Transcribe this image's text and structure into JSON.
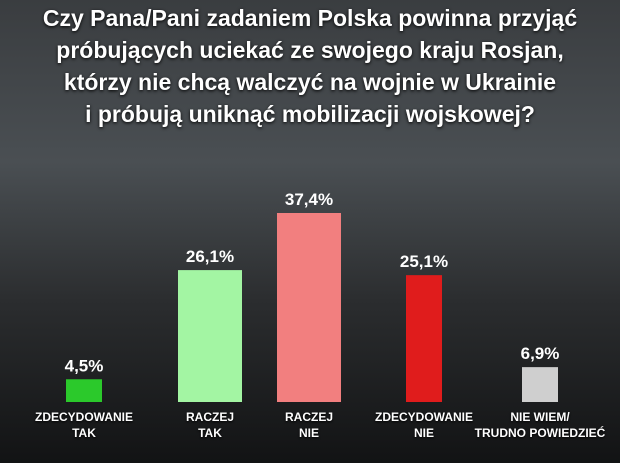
{
  "chart_data": {
    "type": "bar",
    "title": "Czy Pana/Pani zadaniem Polska powinna przyjąć\npróbujących uciekać ze swojego kraju Rosjan,\nktórzy nie chcą walczyć na wojnie w Ukrainie\ni próbują uniknąć mobilizacji wojskowej?",
    "categories": [
      "ZDECYDOWANIE\nTAK",
      "RACZEJ\nTAK",
      "RACZEJ\nNIE",
      "ZDECYDOWANIE\nNIE",
      "NIE WIEM/\nTRUDNO POWIEDZIEĆ"
    ],
    "values": [
      4.5,
      26.1,
      37.4,
      25.1,
      6.9
    ],
    "value_labels": [
      "4,5%",
      "26,1%",
      "37,4%",
      "25,1%",
      "6,9%"
    ],
    "colors": [
      "#2bc92b",
      "#a3f5a3",
      "#f27f7f",
      "#e01c1c",
      "#cfcfcf"
    ]
  }
}
